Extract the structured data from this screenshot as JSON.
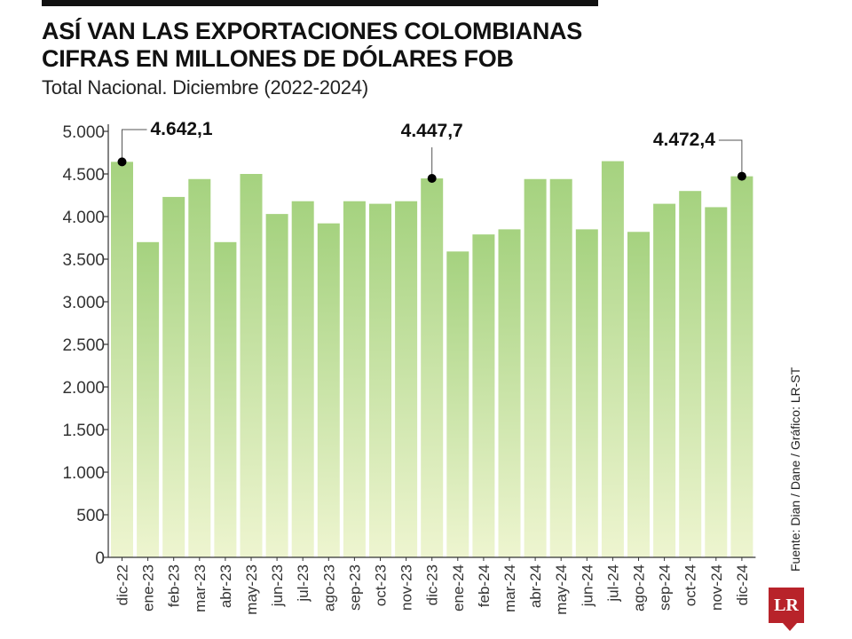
{
  "title_line1": "ASÍ VAN LAS EXPORTACIONES COLOMBIANAS",
  "title_line2": "CIFRAS EN MILLONES DE DÓLARES FOB",
  "subtitle": "Total Nacional. Diciembre (2022-2024)",
  "source": "Fuente: Dian / Dane / Gráfico: LR-ST",
  "logo_text": "LR",
  "chart_data": {
    "type": "bar",
    "categories": [
      "dic-22",
      "ene-23",
      "feb-23",
      "mar-23",
      "abr-23",
      "may-23",
      "jun-23",
      "jul-23",
      "ago-23",
      "sep-23",
      "oct-23",
      "nov-23",
      "dic-23",
      "ene-24",
      "feb-24",
      "mar-24",
      "abr-24",
      "may-24",
      "jun-24",
      "jul-24",
      "ago-24",
      "sep-24",
      "oct-24",
      "nov-24",
      "dic-24"
    ],
    "values": [
      4642.1,
      3700,
      4230,
      4440,
      3700,
      4500,
      4030,
      4180,
      3920,
      4180,
      4150,
      4180,
      4447.7,
      3590,
      3790,
      3850,
      4440,
      4440,
      3850,
      4650,
      3820,
      4150,
      4300,
      4110,
      4472.4
    ],
    "ylim": [
      0,
      5000
    ],
    "yticks": [
      0,
      500,
      1000,
      1500,
      2000,
      2500,
      3000,
      3500,
      4000,
      4500,
      5000
    ],
    "ytick_labels": [
      "0",
      "500",
      "1.000",
      "1.500",
      "2.000",
      "2.500",
      "3.000",
      "3.500",
      "4.000",
      "4.500",
      "5.000"
    ],
    "grid": false,
    "annotations": [
      {
        "index": 0,
        "label": "4.642,1"
      },
      {
        "index": 12,
        "label": "4.447,7"
      },
      {
        "index": 24,
        "label": "4.472,4"
      }
    ],
    "colors": {
      "bar_top": "#a5d27f",
      "bar_bottom": "#eef5d0",
      "axis": "#333333",
      "marker": "#000000"
    }
  }
}
